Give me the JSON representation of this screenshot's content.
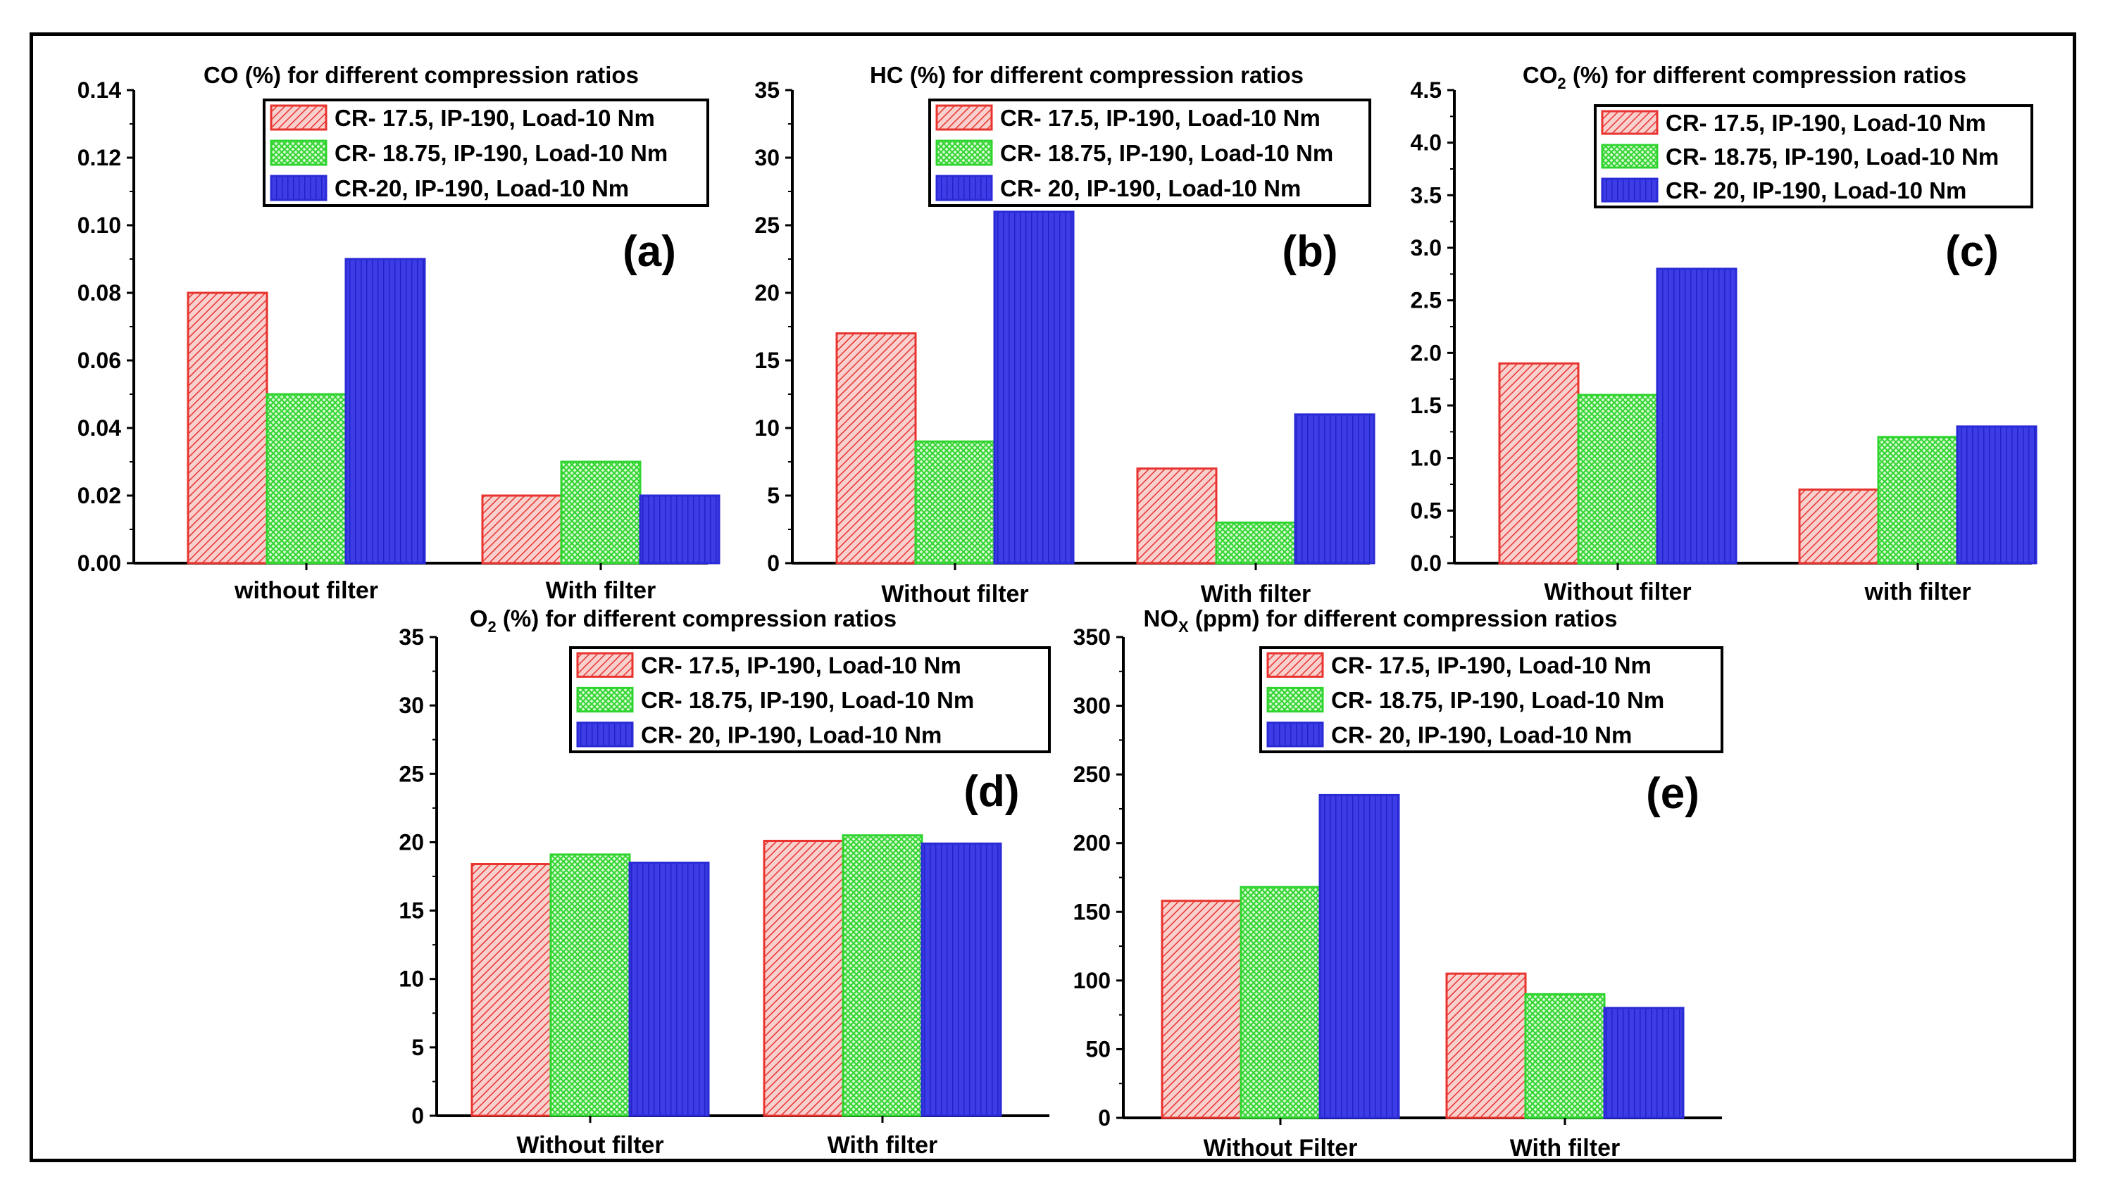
{
  "figure": {
    "description_label": "Emission comparison figure"
  },
  "colors": {
    "series": [
      "#e8332e",
      "#2fd42f",
      "#2a2ad6"
    ],
    "series_light": [
      "#f6c5c2",
      "#c9f5c3",
      "#4343ee"
    ],
    "axis": "#000000"
  },
  "legend_labels": [
    "CR- 17.5, IP-190, Load-10 Nm",
    "CR- 18.75, IP-190, Load-10 Nm",
    "CR-20, IP-190, Load-10 Nm"
  ],
  "chart_data": [
    {
      "id": "a",
      "type": "bar",
      "title": "CO (%) for different compression ratios",
      "title_parts": [
        {
          "t": "CO (%) for different compression ratios"
        }
      ],
      "panel_label": "(a)",
      "categories": [
        "without filter",
        "With filter"
      ],
      "series": [
        {
          "name": "CR- 17.5, IP-190, Load-10 Nm",
          "values": [
            0.08,
            0.02
          ]
        },
        {
          "name": "CR- 18.75, IP-190, Load-10 Nm",
          "values": [
            0.05,
            0.03
          ]
        },
        {
          "name": "CR-20, IP-190, Load-10 Nm",
          "values": [
            0.09,
            0.02
          ]
        }
      ],
      "ylim": [
        0,
        0.14
      ],
      "yticks": [
        "0.00",
        "0.02",
        "0.04",
        "0.06",
        "0.08",
        "0.10",
        "0.12",
        "0.14"
      ],
      "legend_position": "top-right"
    },
    {
      "id": "b",
      "type": "bar",
      "title": "HC (%) for different compression ratios",
      "title_parts": [
        {
          "t": "HC (%) for different compression ratios"
        }
      ],
      "panel_label": "(b)",
      "categories": [
        "Without filter",
        "With filter"
      ],
      "series": [
        {
          "name": "CR- 17.5, IP-190, Load-10 Nm",
          "values": [
            17,
            7
          ]
        },
        {
          "name": "CR- 18.75, IP-190, Load-10 Nm",
          "values": [
            9,
            3
          ]
        },
        {
          "name": "CR- 20, IP-190, Load-10 Nm",
          "values": [
            26,
            11
          ]
        }
      ],
      "ylim": [
        0,
        35
      ],
      "yticks": [
        "0",
        "5",
        "10",
        "15",
        "20",
        "25",
        "30",
        "35"
      ],
      "legend_position": "top-right"
    },
    {
      "id": "c",
      "type": "bar",
      "title": "CO2 (%) for different compression ratios",
      "title_parts": [
        {
          "t": "CO"
        },
        {
          "t": "2",
          "sub": true
        },
        {
          "t": " (%) for different compression ratios"
        }
      ],
      "panel_label": "(c)",
      "categories": [
        "Without filter",
        "with filter"
      ],
      "series": [
        {
          "name": "CR- 17.5, IP-190, Load-10 Nm",
          "values": [
            1.9,
            0.7
          ]
        },
        {
          "name": "CR- 18.75, IP-190, Load-10 Nm",
          "values": [
            1.6,
            1.2
          ]
        },
        {
          "name": "CR- 20, IP-190, Load-10 Nm",
          "values": [
            2.8,
            1.3
          ]
        }
      ],
      "ylim": [
        0,
        4.5
      ],
      "yticks": [
        "0.0",
        "0.5",
        "1.0",
        "1.5",
        "2.0",
        "2.5",
        "3.0",
        "3.5",
        "4.0",
        "4.5"
      ],
      "legend_position": "top-right"
    },
    {
      "id": "d",
      "type": "bar",
      "title": "O2 (%) for different compression ratios",
      "title_parts": [
        {
          "t": "O"
        },
        {
          "t": "2",
          "sub": true
        },
        {
          "t": " (%) for different compression ratios"
        }
      ],
      "panel_label": "(d)",
      "categories": [
        "Without filter",
        "With filter"
      ],
      "series": [
        {
          "name": "CR- 17.5, IP-190, Load-10 Nm",
          "values": [
            18.4,
            20.1
          ]
        },
        {
          "name": "CR- 18.75, IP-190, Load-10 Nm",
          "values": [
            19.1,
            20.5
          ]
        },
        {
          "name": "CR- 20, IP-190, Load-10 Nm",
          "values": [
            18.5,
            19.9
          ]
        }
      ],
      "ylim": [
        0,
        35
      ],
      "yticks": [
        "0",
        "5",
        "10",
        "15",
        "20",
        "25",
        "30",
        "35"
      ],
      "legend_position": "top-right"
    },
    {
      "id": "e",
      "type": "bar",
      "title": "NOX (ppm) for different compression ratios",
      "title_parts": [
        {
          "t": "NO"
        },
        {
          "t": "X",
          "sub": true
        },
        {
          "t": " (ppm) for different compression ratios"
        }
      ],
      "panel_label": "(e)",
      "categories": [
        "Without Filter",
        "With filter"
      ],
      "series": [
        {
          "name": "CR- 17.5, IP-190, Load-10 Nm",
          "values": [
            158,
            105
          ]
        },
        {
          "name": "CR- 18.75, IP-190, Load-10 Nm",
          "values": [
            168,
            90
          ]
        },
        {
          "name": "CR- 20, IP-190, Load-10 Nm",
          "values": [
            235,
            80
          ]
        }
      ],
      "ylim": [
        0,
        350
      ],
      "yticks": [
        "0",
        "50",
        "100",
        "150",
        "200",
        "250",
        "300",
        "350"
      ],
      "legend_position": "top-right"
    }
  ]
}
